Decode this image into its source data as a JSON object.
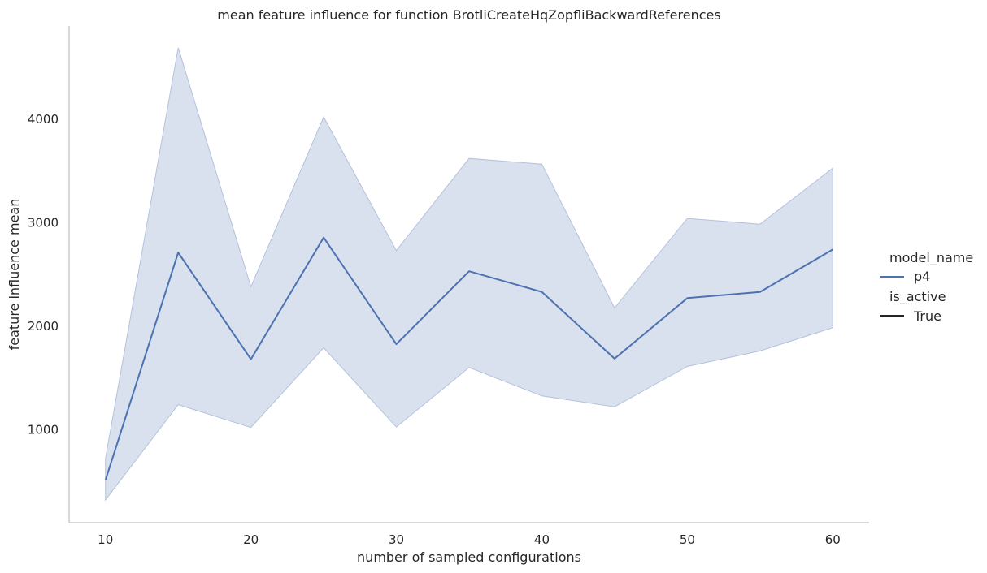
{
  "chart_data": {
    "type": "line",
    "title": "mean feature influence for function BrotliCreateHqZopfliBackwardReferences",
    "xlabel": "number of sampled configurations",
    "ylabel": "feature influence mean",
    "xlim": [
      7.5,
      62.5
    ],
    "ylim": [
      100,
      4900
    ],
    "xticks": [
      10,
      20,
      30,
      40,
      50,
      60
    ],
    "yticks": [
      1000,
      2000,
      3000,
      4000
    ],
    "grid": false,
    "legend_position": "right",
    "series": [
      {
        "name": "p4",
        "color": "#4c72b0",
        "band_color": "#b4c2dd",
        "x": [
          10,
          15,
          20,
          25,
          30,
          35,
          40,
          45,
          50,
          55,
          60
        ],
        "y": [
          510,
          2710,
          1680,
          2855,
          1825,
          2530,
          2330,
          1685,
          2270,
          2330,
          2740
        ],
        "ci_lower": [
          320,
          1240,
          1020,
          1790,
          1025,
          1600,
          1325,
          1220,
          1610,
          1760,
          1985
        ],
        "ci_upper": [
          720,
          4690,
          2380,
          4020,
          2730,
          3620,
          3565,
          2175,
          3040,
          2985,
          3525
        ]
      }
    ]
  },
  "legend": {
    "hue_title": "model_name",
    "hue_items": [
      {
        "label": "p4",
        "color": "#4c72b0"
      }
    ],
    "style_title": "is_active",
    "style_items": [
      {
        "label": "True",
        "color": "#262626"
      }
    ]
  }
}
